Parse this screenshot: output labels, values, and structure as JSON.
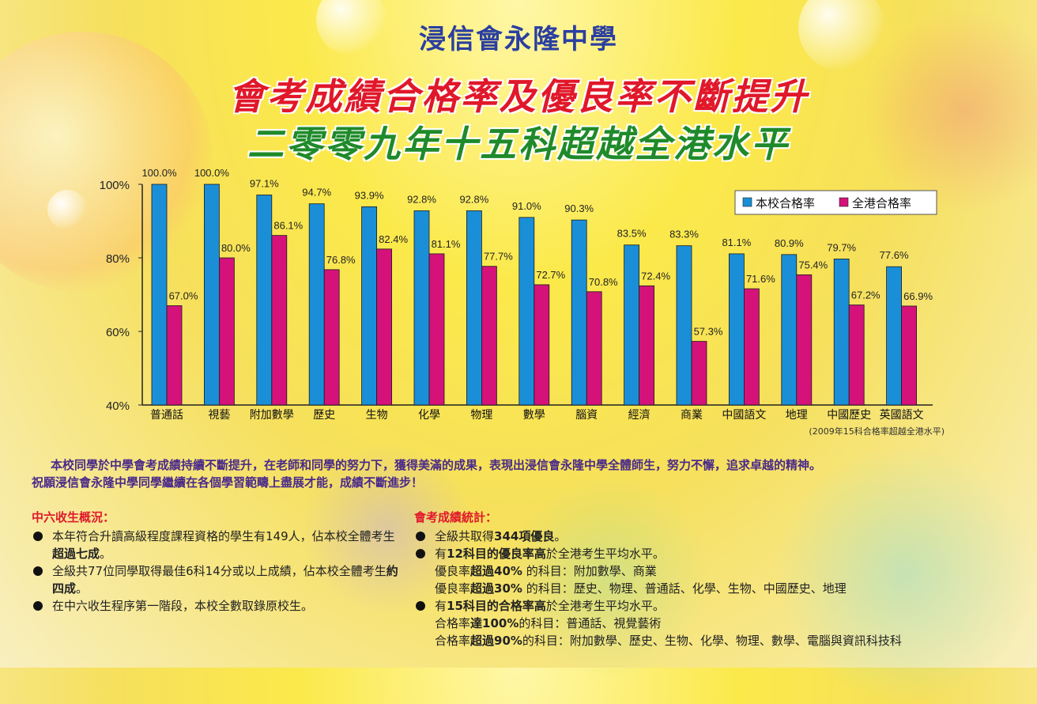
{
  "header": {
    "school": "浸信會永隆中學",
    "headline1": "會考成績合格率及優良率不斷提升",
    "headline2": "二零零九年十五科超越全港水平"
  },
  "chart_data": {
    "type": "bar",
    "categories": [
      "普通話",
      "視藝",
      "附加數學",
      "歷史",
      "生物",
      "化學",
      "物理",
      "數學",
      "腦資",
      "經濟",
      "商業",
      "中國語文",
      "地理",
      "中國歷史",
      "英國語文"
    ],
    "series": [
      {
        "name": "本校合格率",
        "color": "#1a8fd8",
        "values": [
          100.0,
          100.0,
          97.1,
          94.7,
          93.9,
          92.8,
          92.8,
          91.0,
          90.3,
          83.5,
          83.3,
          81.1,
          80.9,
          79.7,
          77.6
        ],
        "labels": [
          "100.0%",
          "100.0%",
          "97.1%",
          "94.7%",
          "93.9%",
          "92.8%",
          "92.8%",
          "91.0%",
          "90.3%",
          "83.5%",
          "83.3%",
          "81.1%",
          "80.9%",
          "79.7%",
          "77.6%"
        ]
      },
      {
        "name": "全港合格率",
        "color": "#d4127a",
        "values": [
          67.0,
          80.0,
          86.1,
          76.8,
          82.4,
          81.1,
          77.7,
          72.7,
          70.8,
          72.4,
          57.3,
          71.6,
          75.4,
          67.2,
          66.9
        ],
        "labels": [
          "67.0%",
          "80.0%",
          "86.1%",
          "76.8%",
          "82.4%",
          "81.1%",
          "77.7%",
          "72.7%",
          "70.8%",
          "72.4%",
          "57.3%",
          "71.6%",
          "75.4%",
          "67.2%",
          "66.9%"
        ]
      }
    ],
    "yticks": [
      "40%",
      "60%",
      "80%",
      "100%"
    ],
    "ylim": [
      40,
      100
    ],
    "legend_position": "top-right",
    "footnote": "(2009年15科合格率超越全港水平)"
  },
  "intro": {
    "p1": "本校同學於中學會考成績持續不斷提升，在老師和同學的努力下，獲得美滿的成果，表現出浸信會永隆中學全體師生，努力不懈，追求卓越的精神。",
    "p2": "祝願浸信會永隆中學同學繼續在各個學習範疇上盡展才能，成績不斷進步！"
  },
  "s6": {
    "title": "中六收生概況：",
    "items": [
      {
        "a": "本年符合升讀高級程度課程資格的學生有149人，佔本校全體考生",
        "b": "超過七成",
        "c": "。"
      },
      {
        "a": "全級共77位同學取得最佳6科14分或以上成績，佔本校全體考生",
        "b": "約四成",
        "c": "。"
      },
      {
        "a": "在中六收生程序第一階段，本校全數取錄原校生。",
        "b": "",
        "c": ""
      }
    ]
  },
  "stats": {
    "title": "會考成績統計：",
    "i1": {
      "a": "全級共取得",
      "b": "344項優良",
      "c": "。"
    },
    "i2": {
      "a": "有",
      "b": "12科目的優良率高",
      "c": "於全港考生平均水平。"
    },
    "i2_l1": {
      "a": "優良率",
      "b": "超過40%",
      "c": " 的科目：附加數學、商業"
    },
    "i2_l2": {
      "a": "優良率",
      "b": "超過30%",
      "c": " 的科目：歷史、物理、普通話、化學、生物、中國歷史、地理"
    },
    "i3": {
      "a": "有",
      "b": "15科目的合格率高",
      "c": "於全港考生平均水平。"
    },
    "i3_l1": {
      "a": "合格率",
      "b": "達100%",
      "c": "的科目：普通話、視覺藝術"
    },
    "i3_l2": {
      "a": "合格率",
      "b": "超過90%",
      "c": "的科目：附加數學、歷史、生物、化學、物理、數學、電腦與資訊科技科"
    }
  }
}
